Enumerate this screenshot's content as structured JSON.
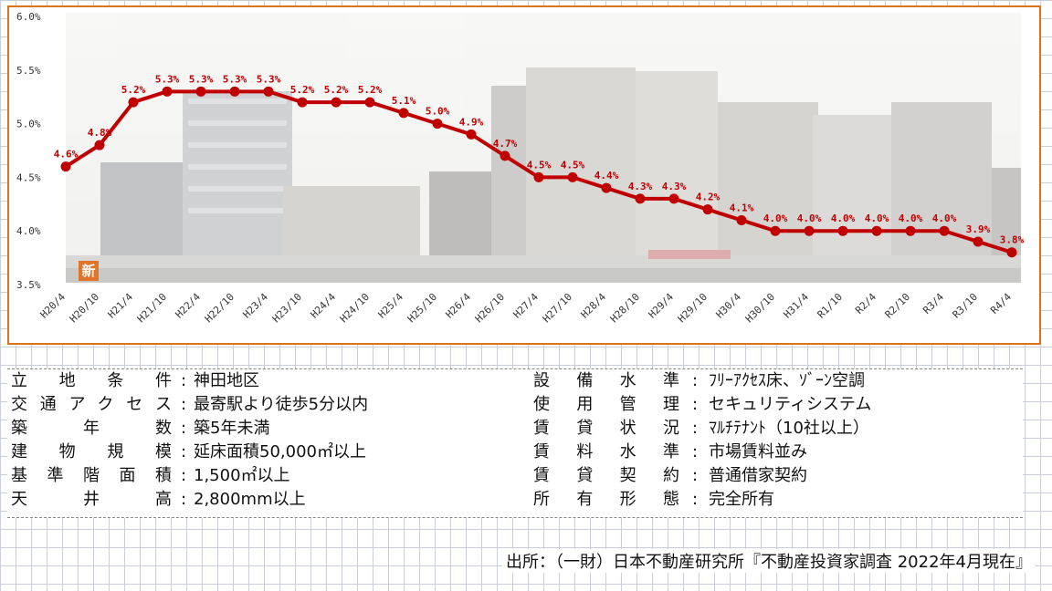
{
  "chart_data": {
    "type": "line",
    "x": [
      "H20/4",
      "H20/10",
      "H21/4",
      "H21/10",
      "H22/4",
      "H22/10",
      "H23/4",
      "H23/10",
      "H24/4",
      "H24/10",
      "H25/4",
      "H25/10",
      "H26/4",
      "H26/10",
      "H27/4",
      "H27/10",
      "H28/4",
      "H28/10",
      "H29/4",
      "H29/10",
      "H30/4",
      "H30/10",
      "H31/4",
      "R1/10",
      "R2/4",
      "R2/10",
      "R3/4",
      "R3/10",
      "R4/4"
    ],
    "values": [
      4.6,
      4.8,
      5.2,
      5.3,
      5.3,
      5.3,
      5.3,
      5.2,
      5.2,
      5.2,
      5.1,
      5.0,
      4.9,
      4.7,
      4.5,
      4.5,
      4.4,
      4.3,
      4.3,
      4.2,
      4.1,
      4.0,
      4.0,
      4.0,
      4.0,
      4.0,
      4.0,
      3.9,
      3.8
    ],
    "data_labels": [
      "4.6%",
      "4.8%",
      "5.2%",
      "5.3%",
      "5.3%",
      "5.3%",
      "5.3%",
      "5.2%",
      "5.2%",
      "5.2%",
      "5.1%",
      "5.0%",
      "4.9%",
      "4.7%",
      "4.5%",
      "4.5%",
      "4.4%",
      "4.3%",
      "4.3%",
      "4.2%",
      "4.1%",
      "4.0%",
      "4.0%",
      "4.0%",
      "4.0%",
      "4.0%",
      "4.0%",
      "3.9%",
      "3.8%"
    ],
    "yticks": [
      3.5,
      4.0,
      4.5,
      5.0,
      5.5,
      6.0
    ],
    "ytick_labels": [
      "3.5%",
      "4.0%",
      "4.5%",
      "5.0%",
      "5.5%",
      "6.0%"
    ],
    "ylim": [
      3.5,
      6.0
    ],
    "grid": false,
    "colors": {
      "line": "#c00000",
      "marker": "#c00000",
      "label": "#c00000",
      "frame": "#d9741c"
    }
  },
  "photo": {
    "badge_text": "新"
  },
  "conditions": {
    "left": [
      {
        "key": "立地条件",
        "value": "神田地区"
      },
      {
        "key": "交通アクセス",
        "value": "最寄駅より徒歩5分以内"
      },
      {
        "key": "築年数",
        "value": "築5年未満"
      },
      {
        "key": "建物規模",
        "value": "延床面積50,000㎡以上"
      },
      {
        "key": "基準階面積",
        "value": "1,500㎡以上"
      },
      {
        "key": "天井高",
        "value": "2,800mm以上"
      }
    ],
    "right": [
      {
        "key": "設備水準",
        "value": "ﾌﾘｰｱｸｾｽ床、ｿﾞｰﾝ空調"
      },
      {
        "key": "使用管理",
        "value": "セキュリティシステム"
      },
      {
        "key": "賃貸状況",
        "value": "ﾏﾙﾁﾃﾅﾝﾄ（10社以上）"
      },
      {
        "key": "賃料水準",
        "value": "市場賃料並み"
      },
      {
        "key": "賃貸契約",
        "value": "普通借家契約"
      },
      {
        "key": "所有形態",
        "value": "完全所有"
      }
    ],
    "separator": ":"
  },
  "source": "出所：（一財）日本不動産研究所『不動産投資家調査 2022年4月現在』"
}
